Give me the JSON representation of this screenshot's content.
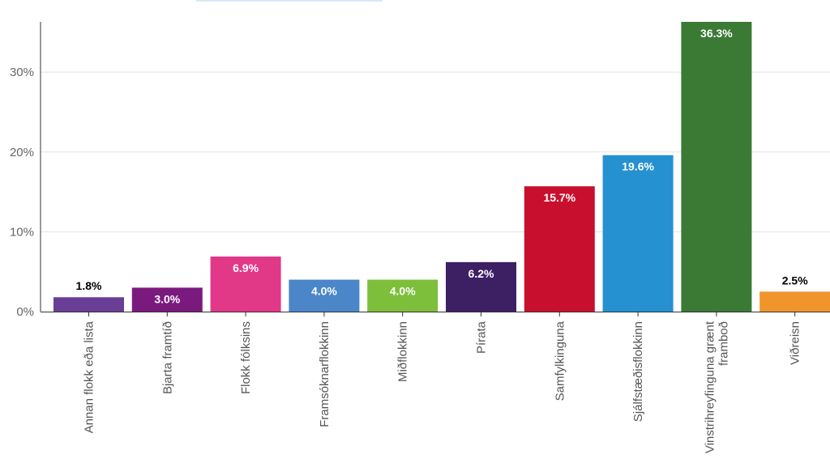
{
  "chart_data": {
    "type": "bar",
    "categories": [
      "Annan flokk eða lista",
      "Bjarta framtíð",
      "Flokk fólksins",
      "Framsóknarflokkinn",
      "Miðflokkinn",
      "Pírata",
      "Samfylkinguna",
      "Sjálfstæðisflokkinn",
      "Vinstrihreyfinguna grænt framboð",
      "Viðreisn"
    ],
    "values": [
      1.8,
      3.0,
      6.9,
      4.0,
      4.0,
      6.2,
      15.7,
      19.6,
      36.3,
      2.5
    ],
    "value_labels": [
      "1.8%",
      "3.0%",
      "6.9%",
      "4.0%",
      "4.0%",
      "6.2%",
      "15.7%",
      "19.6%",
      "36.3%",
      "2.5%"
    ],
    "colors": [
      "#6a3d96",
      "#7b1a7e",
      "#e23888",
      "#4a86c8",
      "#7dbf3a",
      "#3d1f63",
      "#c8102e",
      "#2591d1",
      "#3a7a35",
      "#f0952b"
    ],
    "label_colors": [
      "#000000",
      "#ffffff",
      "#ffffff",
      "#ffffff",
      "#ffffff",
      "#ffffff",
      "#ffffff",
      "#ffffff",
      "#ffffff",
      "#000000"
    ],
    "yticks": [
      "0%",
      "10%",
      "20%",
      "30%"
    ],
    "ytick_values": [
      0,
      10,
      20,
      30
    ],
    "ylim": [
      0,
      36.3
    ],
    "grid": true,
    "title": "",
    "xlabel": "",
    "ylabel": ""
  }
}
